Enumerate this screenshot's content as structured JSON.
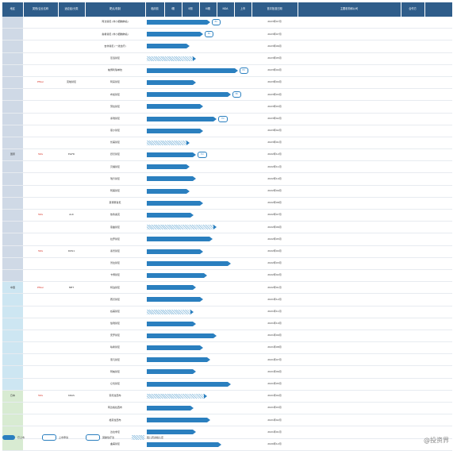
{
  "columns": [
    "地区",
    "类别/企业名称",
    "适应症/分类",
    "靶点/机制",
    "临床前",
    "I期",
    "II期",
    "III期",
    "NDA",
    "上市",
    "首次批准日期",
    "主要机构和公司",
    "合作方"
  ],
  "rows": [
    {
      "area": "",
      "company": "",
      "indication": "",
      "target": "阿法替尼 (非小细胞肺癌)",
      "stage_text": "",
      "bar": [
        0.4
      ],
      "badge": "EU",
      "date": "2023年07月"
    },
    {
      "area": "",
      "company": "",
      "indication": "",
      "target": "奥希替尼 (非小细胞肺癌)",
      "bar": [
        0.35
      ],
      "badge": "EU",
      "date": "2023年07月"
    },
    {
      "area": "",
      "company": "",
      "indication": "",
      "target": "吉非替尼 (一线治疗)",
      "bar": [
        0.25
      ],
      "badge": "",
      "date": "2023年06月"
    },
    {
      "area": "",
      "company": "",
      "indication": "",
      "target": "厄洛替尼",
      "bar": [
        0.3
      ],
      "badge": "",
      "date": "2023年05月"
    },
    {
      "area": "",
      "company": "",
      "indication": "",
      "target": "帕博利珠单抗",
      "bar": [
        0.6
      ],
      "badge": "EU",
      "date": "2023年04月"
    },
    {
      "area": "",
      "company": "Pfizer",
      "indication": "克唑替尼",
      "target": "阿来替尼",
      "bar": [
        0.3
      ],
      "badge": "",
      "date": "2023年04月"
    },
    {
      "area": "",
      "company": "",
      "indication": "",
      "target": "布加替尼",
      "bar": [
        0.55
      ],
      "badge": "EU",
      "date": "2023年03月"
    },
    {
      "area": "",
      "company": "",
      "indication": "",
      "target": "劳拉替尼",
      "bar": [
        0.35
      ],
      "badge": "",
      "date": "2023年03月"
    },
    {
      "area": "",
      "company": "",
      "indication": "",
      "target": "塞瑞替尼",
      "bar": [
        0.45
      ],
      "badge": "EU",
      "date": "2023年02月"
    },
    {
      "area": "",
      "company": "",
      "indication": "",
      "target": "恩沙替尼",
      "bar": [
        0.35
      ],
      "badge": "",
      "date": "2023年02月"
    },
    {
      "area": "",
      "company": "",
      "indication": "",
      "target": "伏美替尼",
      "bar": [
        0.25
      ],
      "badge": "",
      "date": "2023年01月"
    },
    {
      "area": "国家",
      "company": "Tafa",
      "indication": "EGFR",
      "target": "舒沃替尼",
      "bar": [
        0.3
      ],
      "badge": "EU",
      "date": "2022年12月"
    },
    {
      "area": "",
      "company": "",
      "indication": "",
      "target": "贝福替尼",
      "bar": [
        0.25
      ],
      "badge": "",
      "date": "2022年11月"
    },
    {
      "area": "",
      "company": "",
      "indication": "",
      "target": "瑞齐替尼",
      "bar": [
        0.3
      ],
      "badge": "",
      "date": "2022年10月"
    },
    {
      "area": "",
      "company": "",
      "indication": "",
      "target": "阿美替尼",
      "bar": [
        0.25
      ],
      "badge": "",
      "date": "2022年09月"
    },
    {
      "area": "",
      "company": "",
      "indication": "",
      "target": "莫博赛替尼",
      "bar": [
        0.35
      ],
      "badge": "",
      "date": "2022年08月"
    },
    {
      "area": "",
      "company": "Tafa",
      "indication": "ALK",
      "target": "依鲁奥克",
      "bar": [
        0.28
      ],
      "badge": "",
      "date": "2022年07月"
    },
    {
      "area": "",
      "company": "",
      "indication": "",
      "target": "恩曲替尼",
      "bar": [
        0.45
      ],
      "badge": "",
      "date": "2022年06月"
    },
    {
      "area": "",
      "company": "",
      "indication": "",
      "target": "拉罗替尼",
      "bar": [
        0.42
      ],
      "badge": "",
      "date": "2022年05月"
    },
    {
      "area": "",
      "company": "Tafa",
      "indication": "ROS1",
      "target": "塞普替尼",
      "bar": [
        0.35
      ],
      "badge": "",
      "date": "2022年04月"
    },
    {
      "area": "",
      "company": "",
      "indication": "",
      "target": "普拉替尼",
      "bar": [
        0.55
      ],
      "badge": "",
      "date": "2022年03月"
    },
    {
      "area": "",
      "company": "",
      "indication": "",
      "target": "卡博替尼",
      "bar": [
        0.38
      ],
      "badge": "",
      "date": "2022年02月"
    },
    {
      "area": "中国",
      "company": "Pfizer",
      "indication": "MET",
      "target": "特泊替尼",
      "bar": [
        0.3
      ],
      "badge": "",
      "date": "2022年01月"
    },
    {
      "area": "",
      "company": "",
      "indication": "",
      "target": "赛沃替尼",
      "bar": [
        0.35
      ],
      "badge": "",
      "date": "2021年12月"
    },
    {
      "area": "",
      "company": "",
      "indication": "",
      "target": "谷美替尼",
      "bar": [
        0.28
      ],
      "badge": "",
      "date": "2021年11月"
    },
    {
      "area": "",
      "company": "",
      "indication": "",
      "target": "伯瑞替尼",
      "bar": [
        0.3
      ],
      "badge": "",
      "date": "2021年10月"
    },
    {
      "area": "",
      "company": "",
      "indication": "",
      "target": "安罗替尼",
      "bar": [
        0.45
      ],
      "badge": "",
      "date": "2021年09月"
    },
    {
      "area": "",
      "company": "",
      "indication": "",
      "target": "呋喹替尼",
      "bar": [
        0.35
      ],
      "badge": "",
      "date": "2021年08月"
    },
    {
      "area": "",
      "company": "",
      "indication": "",
      "target": "索凡替尼",
      "bar": [
        0.4
      ],
      "badge": "",
      "date": "2021年07月"
    },
    {
      "area": "",
      "company": "",
      "indication": "",
      "target": "阿帕替尼",
      "bar": [
        0.3
      ],
      "badge": "",
      "date": "2021年06月"
    },
    {
      "area": "",
      "company": "",
      "indication": "",
      "target": "仑伐替尼",
      "bar": [
        0.55
      ],
      "badge": "",
      "date": "2021年05月"
    },
    {
      "area": "日本",
      "company": "Tafa",
      "indication": "KRAS",
      "target": "索托拉西布",
      "bar": [
        0.38
      ],
      "badge": "",
      "date": "2021年04月"
    },
    {
      "area": "",
      "company": "",
      "indication": "",
      "target": "阿达格拉西布",
      "bar": [
        0.28
      ],
      "badge": "",
      "date": "2021年03月"
    },
    {
      "area": "",
      "company": "",
      "indication": "",
      "target": "格索拉西布",
      "bar": [
        0.4
      ],
      "badge": "",
      "date": "2021年02月"
    },
    {
      "area": "",
      "company": "",
      "indication": "",
      "target": "达拉非尼",
      "bar": [
        0.3
      ],
      "badge": "",
      "date": "2021年01月"
    },
    {
      "area": "",
      "company": "",
      "indication": "",
      "target": "曲美替尼",
      "bar": [
        0.48
      ],
      "badge": "",
      "date": "2020年12月"
    }
  ],
  "legend": [
    "已上市",
    "上市申请",
    "突破性疗法",
    "孤儿药资格认定"
  ],
  "watermark": "@投资界"
}
